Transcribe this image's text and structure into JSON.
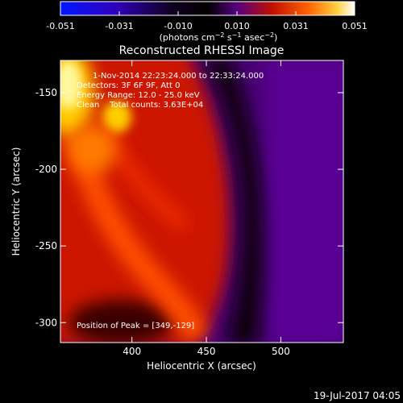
{
  "chart_data": {
    "type": "heatmap",
    "title": "Reconstructed RHESSI Image",
    "xlabel": "Heliocentric X (arcsec)",
    "ylabel": "Heliocentric Y (arcsec)",
    "xlim": [
      352,
      542
    ],
    "ylim": [
      -313,
      -129
    ],
    "x_ticks": [
      400,
      450,
      500
    ],
    "y_ticks": [
      -150,
      -200,
      -250,
      -300
    ],
    "colorbar": {
      "ticks": [
        "-0.051",
        "-0.031",
        "-0.010",
        "0.010",
        "0.031",
        "0.051"
      ],
      "range": [
        -0.051,
        0.051
      ],
      "units_label": "(photons cm⁻² s⁻¹ asec⁻²)",
      "colors": [
        "#0018ff",
        "#3a00a0",
        "#000000",
        "#560080",
        "#c01800",
        "#ff6800",
        "#ffff80",
        "#ffffff"
      ]
    },
    "annotations": [
      "1-Nov-2014 22:23:24.000 to 22:33:24.000",
      "Detectors: 3F 6F 9F, Att 0",
      "Energy Range: 12.0 - 25.0 keV",
      "Clean    Total counts: 3.63E+04"
    ],
    "peak_label": "Position of Peak = [349,-129]",
    "peak": [
      349,
      -129
    ],
    "features": [
      {
        "name": "bright-core",
        "x": 362,
        "y": -140,
        "value": 0.051
      },
      {
        "name": "secondary-spot",
        "x": 388,
        "y": -152,
        "value": 0.045
      },
      {
        "name": "arc-ridge",
        "x": 400,
        "y": -205,
        "value": 0.025
      },
      {
        "name": "dark-lane",
        "x": 475,
        "y": -220,
        "value": 0.0
      }
    ]
  },
  "footer": {
    "date_stamp": "19-Jul-2017 04:05"
  }
}
